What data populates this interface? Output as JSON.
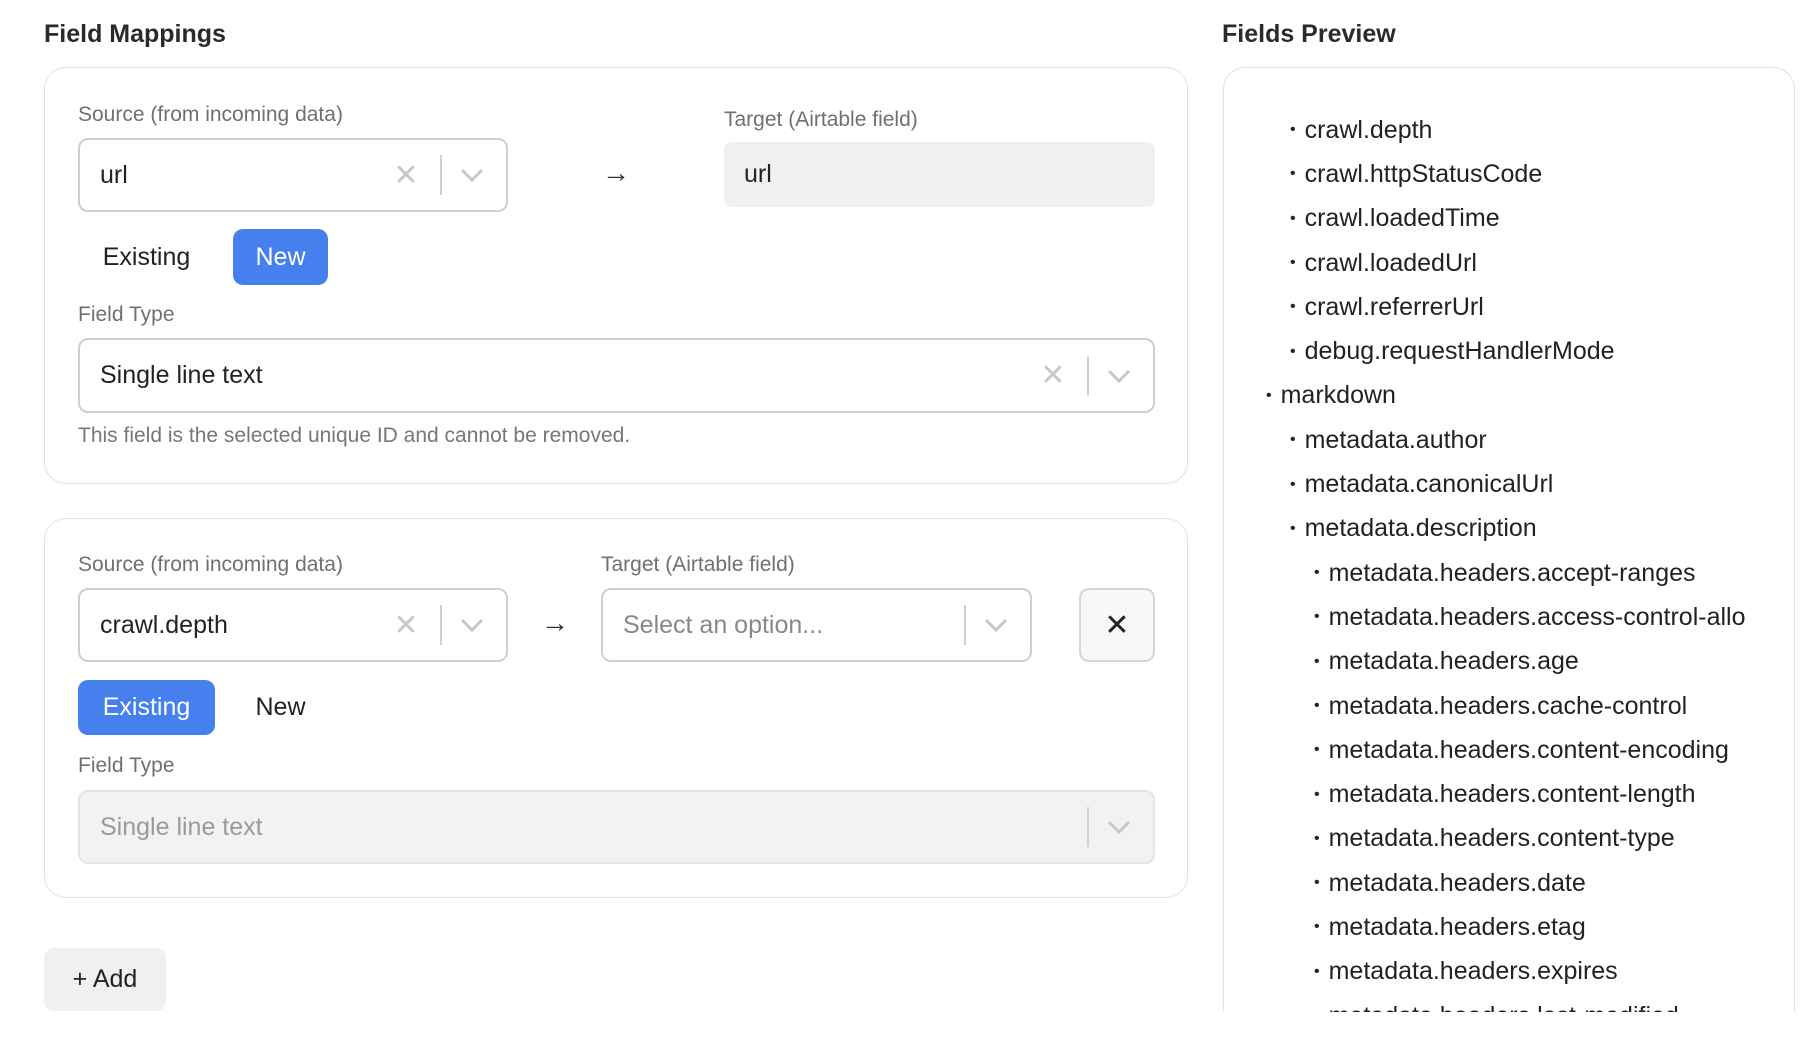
{
  "mappings": {
    "title": "Field Mappings",
    "source_label": "Source (from incoming data)",
    "target_label": "Target (Airtable field)",
    "field_type_label": "Field Type",
    "existing_label": "Existing",
    "new_label": "New",
    "items": [
      {
        "source": "url",
        "target": "url",
        "mode": "New",
        "field_type": "Single line text",
        "help": "This field is the selected unique ID and cannot be removed."
      },
      {
        "source": "crawl.depth",
        "target_placeholder": "Select an option...",
        "mode": "Existing",
        "field_type": "Single line text"
      }
    ],
    "add_label": "+ Add"
  },
  "preview": {
    "title": "Fields Preview",
    "fields": [
      {
        "name": "crawl.depth",
        "level": 1
      },
      {
        "name": "crawl.httpStatusCode",
        "level": 1
      },
      {
        "name": "crawl.loadedTime",
        "level": 1
      },
      {
        "name": "crawl.loadedUrl",
        "level": 1
      },
      {
        "name": "crawl.referrerUrl",
        "level": 1
      },
      {
        "name": "debug.requestHandlerMode",
        "level": 1
      },
      {
        "name": "markdown",
        "level": 0
      },
      {
        "name": "metadata.author",
        "level": 1
      },
      {
        "name": "metadata.canonicalUrl",
        "level": 1
      },
      {
        "name": "metadata.description",
        "level": 1
      },
      {
        "name": "metadata.headers.accept-ranges",
        "level": 2
      },
      {
        "name": "metadata.headers.access-control-allo",
        "level": 2
      },
      {
        "name": "metadata.headers.age",
        "level": 2
      },
      {
        "name": "metadata.headers.cache-control",
        "level": 2
      },
      {
        "name": "metadata.headers.content-encoding",
        "level": 2
      },
      {
        "name": "metadata.headers.content-length",
        "level": 2
      },
      {
        "name": "metadata.headers.content-type",
        "level": 2
      },
      {
        "name": "metadata.headers.date",
        "level": 2
      },
      {
        "name": "metadata.headers.etag",
        "level": 2
      },
      {
        "name": "metadata.headers.expires",
        "level": 2
      },
      {
        "name": "metadata.headers.last-modified",
        "level": 2
      }
    ]
  },
  "colors": {
    "accent": "#4680ee"
  }
}
